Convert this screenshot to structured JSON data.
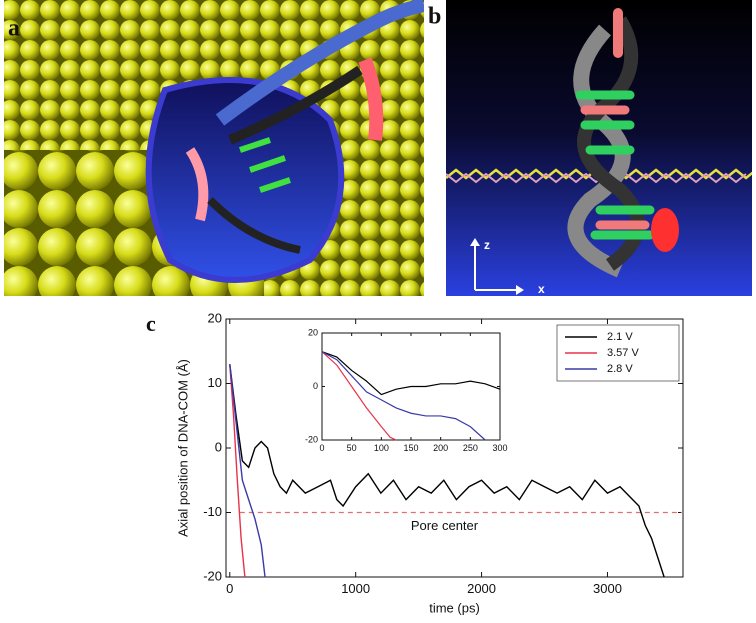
{
  "panel_labels": [
    "a",
    "b",
    "c"
  ],
  "panel_b_axes": [
    "z",
    "x"
  ],
  "chart_data": [
    {
      "type": "line",
      "xlabel": "time (ps)",
      "ylabel": "Axial position of DNA-COM (Å)",
      "xlim": [
        -30,
        3600
      ],
      "xticks": [
        0,
        1000,
        2000,
        3000
      ],
      "ylim": [
        -20,
        20
      ],
      "yticks": [
        -20,
        -10,
        0,
        10,
        20
      ],
      "legend": "upper right",
      "series": [
        {
          "name": "2.1 V",
          "color": "#000000",
          "x": [
            0,
            50,
            100,
            150,
            200,
            250,
            300,
            350,
            400,
            450,
            500,
            600,
            700,
            800,
            850,
            900,
            1000,
            1100,
            1200,
            1300,
            1400,
            1500,
            1600,
            1700,
            1800,
            1900,
            2000,
            2100,
            2200,
            2300,
            2400,
            2500,
            2600,
            2700,
            2800,
            2900,
            3000,
            3100,
            3200,
            3250,
            3300,
            3350,
            3400,
            3450
          ],
          "values": [
            13,
            5,
            -2,
            -3,
            0,
            1,
            0,
            -4,
            -6,
            -7,
            -5,
            -7,
            -6,
            -5,
            -8,
            -9,
            -6,
            -4,
            -7,
            -5,
            -8,
            -6,
            -7,
            -5,
            -8,
            -6,
            -5,
            -7,
            -6,
            -8,
            -5,
            -6,
            -7,
            -6,
            -8,
            -5,
            -7,
            -6,
            -8,
            -9,
            -12,
            -14,
            -17,
            -20
          ]
        },
        {
          "name": "3.57 V",
          "color": "#e8324a",
          "x": [
            0,
            30,
            60,
            90,
            120
          ],
          "values": [
            13,
            5,
            -5,
            -14,
            -20
          ]
        },
        {
          "name": "2.8 V",
          "color": "#3a3aa8",
          "x": [
            0,
            50,
            100,
            150,
            200,
            250,
            280
          ],
          "values": [
            13,
            4,
            -5,
            -8,
            -11,
            -15,
            -20
          ]
        }
      ],
      "hlines": [
        {
          "y": -10,
          "xmin": 80,
          "color": "#e07070",
          "label": "Pore center"
        }
      ]
    },
    {
      "type": "line",
      "xlim": [
        0,
        300
      ],
      "xticks": [
        0,
        50,
        100,
        150,
        200,
        250,
        300
      ],
      "ylim": [
        -20,
        20
      ],
      "yticks": [
        -20,
        0,
        20
      ],
      "series": [
        {
          "color": "#000000",
          "x": [
            0,
            25,
            50,
            75,
            100,
            125,
            150,
            175,
            200,
            225,
            250,
            275,
            300
          ],
          "values": [
            13,
            11,
            6,
            2,
            -3,
            -1,
            0,
            0,
            1,
            1,
            2,
            1,
            -1
          ]
        },
        {
          "color": "#e8324a",
          "x": [
            0,
            25,
            50,
            75,
            100,
            115,
            125
          ],
          "values": [
            13,
            8,
            0,
            -8,
            -15,
            -19,
            -20
          ]
        },
        {
          "color": "#3a3aa8",
          "x": [
            0,
            25,
            50,
            75,
            100,
            125,
            150,
            175,
            200,
            225,
            250,
            275
          ],
          "values": [
            13,
            10,
            4,
            -2,
            -5,
            -8,
            -10,
            -11,
            -11,
            -12,
            -15,
            -20
          ]
        }
      ]
    }
  ]
}
